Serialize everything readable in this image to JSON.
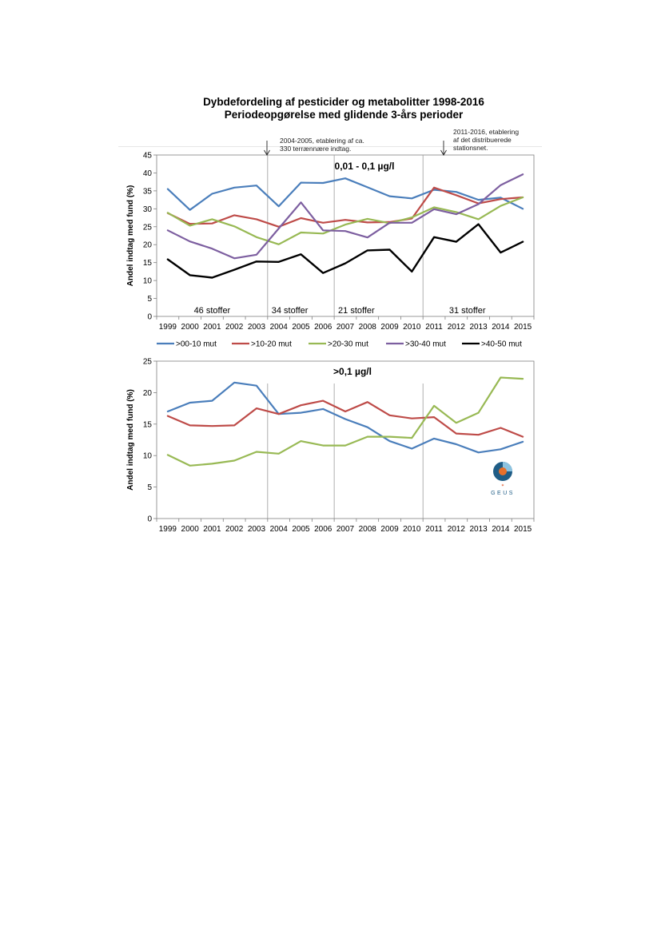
{
  "page": {
    "title_line1": "Dybdefordeling af pesticider og metabolitter 1998-2016",
    "title_line2": "Periodeopgørelse med glidende 3-års perioder",
    "annotation_left_line1": "2004-2005, etablering af ca.",
    "annotation_left_line2": "330 terrænnære indtag.",
    "annotation_right_line1": "2011-2016, etablering",
    "annotation_right_line2": "af det distribuerede",
    "annotation_right_line3": "stationsnet.",
    "logo_text": "GEUS"
  },
  "legend": [
    {
      "name": ">00-10 mut",
      "color": "#4a7ebb"
    },
    {
      "name": ">10-20 mut",
      "color": "#be4b48"
    },
    {
      "name": ">20-30 mut",
      "color": "#98b954"
    },
    {
      "name": ">30-40 mut",
      "color": "#7d5fa0"
    },
    {
      "name": ">40-50 mut",
      "color": "#000000"
    }
  ],
  "chart_data": [
    {
      "type": "line",
      "title": "0,01 - 0,1 µg/l",
      "ylabel": "Andel indtag med fund (%)",
      "xlabel": "",
      "ylim": [
        0,
        45
      ],
      "yticks": [
        "0",
        "5",
        "10",
        "15",
        "20",
        "25",
        "30",
        "35",
        "40",
        "45"
      ],
      "categories": [
        "1999",
        "2000",
        "2001",
        "2002",
        "2003",
        "2004",
        "2005",
        "2006",
        "2007",
        "2008",
        "2009",
        "2010",
        "2011",
        "2012",
        "2013",
        "2014",
        "2015"
      ],
      "period_labels": [
        "46 stoffer",
        "34 stoffer",
        "21 stoffer",
        "31 stoffer"
      ],
      "series": [
        {
          "name": ">00-10 mut",
          "color": "#4a7ebb",
          "values": [
            35.5,
            29.7,
            34.2,
            35.9,
            36.5,
            30.7,
            37.3,
            37.2,
            38.5,
            36.0,
            33.5,
            32.9,
            35.3,
            34.7,
            32.5,
            33.1,
            30.0
          ]
        },
        {
          "name": ">10-20 mut",
          "color": "#be4b48",
          "values": [
            28.8,
            25.8,
            25.9,
            28.2,
            27.1,
            25.0,
            27.4,
            26.1,
            26.9,
            26.2,
            26.3,
            27.3,
            35.9,
            33.8,
            31.5,
            32.7,
            33.2
          ]
        },
        {
          "name": ">20-30 mut",
          "color": "#98b954",
          "values": [
            28.9,
            25.3,
            27.1,
            25.1,
            22.1,
            20.1,
            23.4,
            23.1,
            25.6,
            27.2,
            26.0,
            27.6,
            30.4,
            29.1,
            27.1,
            30.8,
            33.2
          ]
        },
        {
          "name": ">30-40 mut",
          "color": "#7d5fa0",
          "values": [
            24.0,
            20.9,
            18.9,
            16.2,
            17.2,
            24.5,
            31.8,
            24.0,
            23.8,
            22.0,
            26.1,
            26.1,
            29.9,
            28.5,
            31.3,
            36.6,
            39.6
          ]
        },
        {
          "name": ">40-50 mut",
          "color": "#000000",
          "values": [
            15.9,
            11.5,
            10.8,
            13.0,
            15.3,
            15.2,
            17.3,
            12.1,
            14.8,
            18.4,
            18.6,
            12.5,
            22.1,
            20.8,
            25.7,
            17.8,
            20.8
          ]
        }
      ]
    },
    {
      "type": "line",
      "title": ">0,1 µg/l",
      "ylabel": "Andel indtag med fund (%)",
      "xlabel": "",
      "ylim": [
        0,
        25
      ],
      "yticks": [
        "0",
        "5",
        "10",
        "15",
        "20",
        "25"
      ],
      "categories": [
        "1999",
        "2000",
        "2001",
        "2002",
        "2003",
        "2004",
        "2005",
        "2006",
        "2007",
        "2008",
        "2009",
        "2010",
        "2011",
        "2012",
        "2013",
        "2014",
        "2015"
      ],
      "series": [
        {
          "name": ">00-10 mut",
          "color": "#4a7ebb",
          "values": [
            17.0,
            18.4,
            18.7,
            21.6,
            21.1,
            16.6,
            16.8,
            17.4,
            15.8,
            14.5,
            12.3,
            11.1,
            12.7,
            11.8,
            10.5,
            11.0,
            12.2
          ]
        },
        {
          "name": ">10-20 mut",
          "color": "#be4b48",
          "values": [
            16.3,
            14.8,
            14.7,
            14.8,
            17.5,
            16.6,
            18.0,
            18.7,
            17.0,
            18.5,
            16.4,
            15.9,
            16.1,
            13.5,
            13.3,
            14.4,
            13.0
          ]
        },
        {
          "name": ">20-30 mut",
          "color": "#98b954",
          "values": [
            10.1,
            8.4,
            8.7,
            9.2,
            10.6,
            10.3,
            12.3,
            11.6,
            11.6,
            13.0,
            13.0,
            12.8,
            17.9,
            15.2,
            16.8,
            22.4,
            22.2
          ]
        }
      ]
    }
  ]
}
